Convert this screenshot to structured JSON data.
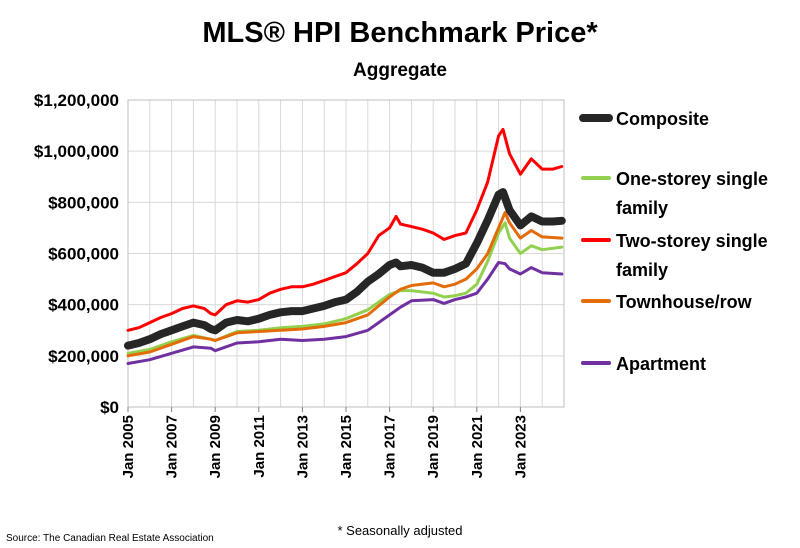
{
  "chart_data": {
    "type": "line",
    "title": "MLS® HPI Benchmark Price*",
    "subtitle": "Aggregate",
    "xlabel": "",
    "ylabel": "",
    "xlim": [
      2005,
      2025
    ],
    "ylim": [
      0,
      1200000
    ],
    "y_ticks": [
      {
        "value": 0,
        "label": "$0"
      },
      {
        "value": 200000,
        "label": "$200,000"
      },
      {
        "value": 400000,
        "label": "$400,000"
      },
      {
        "value": 600000,
        "label": "$600,000"
      },
      {
        "value": 800000,
        "label": "$800,000"
      },
      {
        "value": 1000000,
        "label": "$1,000,000"
      },
      {
        "value": 1200000,
        "label": "$1,200,000"
      }
    ],
    "x_ticks": [
      {
        "value": 2005,
        "label": "Jan 2005"
      },
      {
        "value": 2007,
        "label": "Jan 2007"
      },
      {
        "value": 2009,
        "label": "Jan 2009"
      },
      {
        "value": 2011,
        "label": "Jan 2011"
      },
      {
        "value": 2013,
        "label": "Jan 2013"
      },
      {
        "value": 2015,
        "label": "Jan 2015"
      },
      {
        "value": 2017,
        "label": "Jan 2017"
      },
      {
        "value": 2019,
        "label": "Jan 2019"
      },
      {
        "value": 2021,
        "label": "Jan 2021"
      },
      {
        "value": 2023,
        "label": "Jan 2023"
      }
    ],
    "grid": true,
    "legend_position": "right",
    "series": [
      {
        "name": "Composite",
        "color": "#262626",
        "line_width": 8,
        "x": [
          2005,
          2005.5,
          2006,
          2006.5,
          2007,
          2007.5,
          2008,
          2008.5,
          2008.8,
          2009,
          2009.5,
          2010,
          2010.5,
          2011,
          2011.5,
          2012,
          2012.5,
          2013,
          2013.5,
          2014,
          2014.5,
          2015,
          2015.5,
          2016,
          2016.5,
          2017,
          2017.3,
          2017.5,
          2018,
          2018.5,
          2019,
          2019.5,
          2020,
          2020.5,
          2021,
          2021.5,
          2022,
          2022.2,
          2022.5,
          2023,
          2023.5,
          2024,
          2024.5,
          2024.9
        ],
        "y": [
          240000,
          250000,
          265000,
          285000,
          300000,
          315000,
          330000,
          320000,
          305000,
          300000,
          330000,
          340000,
          335000,
          345000,
          360000,
          370000,
          375000,
          375000,
          385000,
          395000,
          410000,
          420000,
          450000,
          490000,
          520000,
          555000,
          565000,
          550000,
          555000,
          545000,
          525000,
          525000,
          540000,
          560000,
          640000,
          730000,
          830000,
          840000,
          770000,
          710000,
          745000,
          725000,
          725000,
          728000
        ]
      },
      {
        "name": "One-storey single family",
        "color": "#92D050",
        "line_width": 3,
        "x": [
          2005,
          2006,
          2007,
          2008,
          2008.8,
          2009,
          2010,
          2011,
          2012,
          2013,
          2014,
          2015,
          2016,
          2016.5,
          2017,
          2017.5,
          2018,
          2019,
          2019.5,
          2020,
          2020.5,
          2021,
          2021.5,
          2022,
          2022.3,
          2022.5,
          2023,
          2023.5,
          2024,
          2024.9
        ],
        "y": [
          210000,
          225000,
          255000,
          280000,
          265000,
          260000,
          295000,
          300000,
          310000,
          315000,
          325000,
          345000,
          380000,
          410000,
          440000,
          455000,
          455000,
          445000,
          430000,
          435000,
          445000,
          480000,
          570000,
          680000,
          720000,
          660000,
          600000,
          630000,
          615000,
          625000
        ]
      },
      {
        "name": "Two-storey single family",
        "color": "#FF0000",
        "line_width": 3,
        "x": [
          2005,
          2005.5,
          2006,
          2006.5,
          2007,
          2007.5,
          2008,
          2008.5,
          2008.8,
          2009,
          2009.5,
          2010,
          2010.5,
          2011,
          2011.5,
          2012,
          2012.5,
          2013,
          2013.5,
          2014,
          2014.5,
          2015,
          2015.5,
          2016,
          2016.5,
          2017,
          2017.3,
          2017.5,
          2018,
          2018.5,
          2019,
          2019.5,
          2020,
          2020.5,
          2021,
          2021.5,
          2022,
          2022.2,
          2022.5,
          2023,
          2023.5,
          2024,
          2024.5,
          2024.9
        ],
        "y": [
          300000,
          310000,
          330000,
          350000,
          365000,
          385000,
          395000,
          385000,
          365000,
          360000,
          400000,
          415000,
          410000,
          420000,
          445000,
          460000,
          470000,
          470000,
          480000,
          495000,
          510000,
          525000,
          560000,
          600000,
          670000,
          700000,
          745000,
          715000,
          705000,
          695000,
          680000,
          655000,
          670000,
          680000,
          770000,
          880000,
          1060000,
          1085000,
          990000,
          910000,
          970000,
          930000,
          930000,
          940000
        ]
      },
      {
        "name": "Townhouse/row",
        "color": "#E36C09",
        "line_width": 3,
        "x": [
          2005,
          2006,
          2007,
          2008,
          2008.8,
          2009,
          2010,
          2011,
          2012,
          2013,
          2014,
          2015,
          2016,
          2016.5,
          2017,
          2017.5,
          2018,
          2019,
          2019.5,
          2020,
          2020.5,
          2021,
          2021.5,
          2022,
          2022.3,
          2022.5,
          2023,
          2023.5,
          2024,
          2024.9
        ],
        "y": [
          200000,
          215000,
          245000,
          275000,
          265000,
          260000,
          290000,
          295000,
          300000,
          305000,
          315000,
          330000,
          360000,
          395000,
          430000,
          460000,
          475000,
          485000,
          470000,
          480000,
          500000,
          540000,
          600000,
          700000,
          760000,
          720000,
          660000,
          690000,
          665000,
          660000
        ]
      },
      {
        "name": "Apartment",
        "color": "#7030A0",
        "line_width": 3,
        "x": [
          2005,
          2006,
          2007,
          2008,
          2008.8,
          2009,
          2010,
          2011,
          2012,
          2013,
          2014,
          2015,
          2016,
          2016.5,
          2017,
          2017.5,
          2018,
          2019,
          2019.5,
          2020,
          2020.5,
          2021,
          2021.5,
          2022,
          2022.3,
          2022.5,
          2023,
          2023.5,
          2024,
          2024.9
        ],
        "y": [
          170000,
          185000,
          210000,
          235000,
          230000,
          220000,
          250000,
          255000,
          265000,
          260000,
          265000,
          275000,
          300000,
          330000,
          360000,
          390000,
          415000,
          420000,
          405000,
          420000,
          430000,
          445000,
          500000,
          565000,
          560000,
          540000,
          520000,
          545000,
          525000,
          520000
        ]
      }
    ],
    "legend_order": [
      "Composite",
      "One-storey single family",
      "Two-storey single family",
      "Townhouse/row",
      "Apartment"
    ]
  },
  "legend": {
    "items": [
      {
        "name": "composite",
        "lines": [
          "Composite"
        ],
        "color": "#262626",
        "line_width": 8
      },
      {
        "name": "one-storey",
        "lines": [
          "One-storey single",
          "family"
        ],
        "color": "#92D050",
        "line_width": 4
      },
      {
        "name": "two-storey",
        "lines": [
          "Two-storey single",
          "family"
        ],
        "color": "#FF0000",
        "line_width": 4
      },
      {
        "name": "townhouse",
        "lines": [
          "Townhouse/row"
        ],
        "color": "#E36C09",
        "line_width": 4
      },
      {
        "name": "apartment",
        "lines": [
          "Apartment"
        ],
        "color": "#7030A0",
        "line_width": 4
      }
    ]
  },
  "footer": {
    "source": "Source: The Canadian Real Estate Association",
    "note": "* Seasonally adjusted"
  }
}
